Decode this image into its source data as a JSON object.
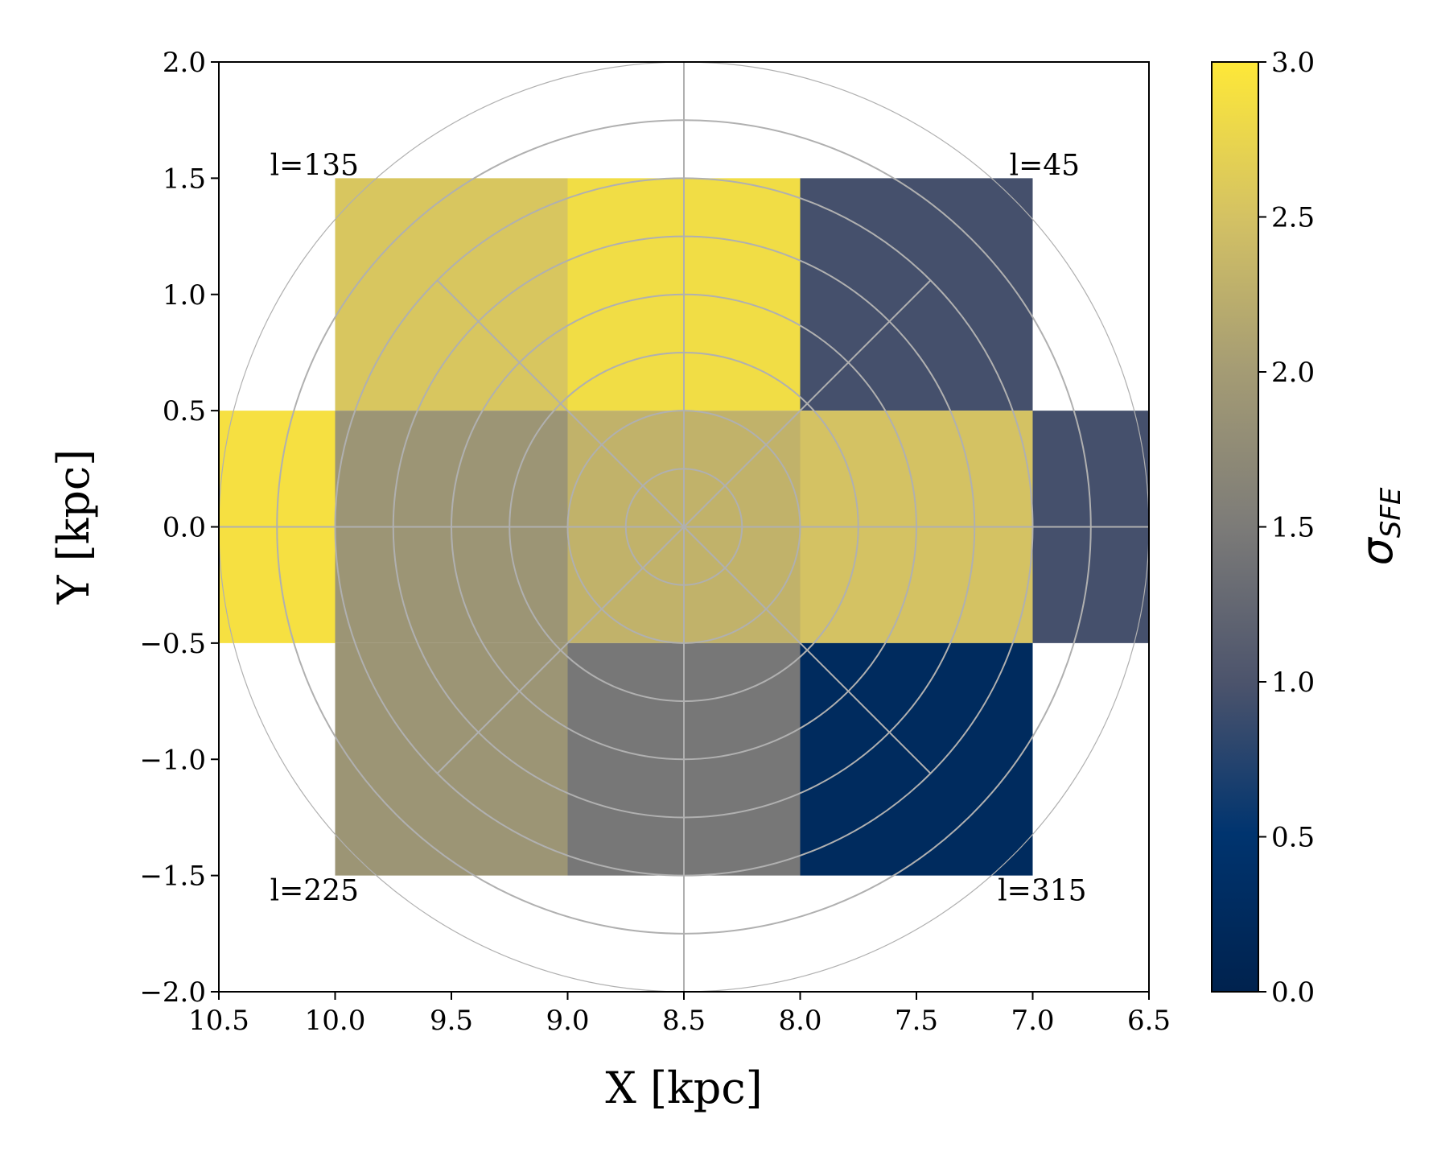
{
  "chart_data": {
    "type": "heatmap",
    "xlabel": "X [kpc]",
    "ylabel": "Y [kpc]",
    "xlim": [
      10.5,
      6.5
    ],
    "ylim": [
      -2.0,
      2.0
    ],
    "x_ticks": [
      "10.5",
      "10.0",
      "9.5",
      "9.0",
      "8.5",
      "8.0",
      "7.5",
      "7.0",
      "6.5"
    ],
    "y_ticks": [
      "2.0",
      "1.5",
      "1.0",
      "0.5",
      "0.0",
      "−0.5",
      "−1.0",
      "−1.5",
      "−2.0"
    ],
    "colorbar": {
      "label_base": "σ",
      "label_sub": "SFE",
      "range": [
        0.0,
        3.0
      ],
      "ticks": [
        "0.0",
        "0.5",
        "1.0",
        "1.5",
        "2.0",
        "2.5",
        "3.0"
      ],
      "colormap": "cividis"
    },
    "cells": [
      {
        "x0": 10.0,
        "x1": 9.0,
        "y0": 0.5,
        "y1": 1.5,
        "value": 2.55
      },
      {
        "x0": 9.0,
        "x1": 8.0,
        "y0": 0.5,
        "y1": 1.5,
        "value": 2.85
      },
      {
        "x0": 8.0,
        "x1": 7.0,
        "y0": 0.5,
        "y1": 1.5,
        "value": 0.95
      },
      {
        "x0": 10.5,
        "x1": 10.0,
        "y0": -0.5,
        "y1": 0.5,
        "value": 2.9
      },
      {
        "x0": 10.0,
        "x1": 9.0,
        "y0": -0.5,
        "y1": 0.5,
        "value": 1.9
      },
      {
        "x0": 9.0,
        "x1": 8.0,
        "y0": -0.5,
        "y1": 0.5,
        "value": 2.3
      },
      {
        "x0": 8.0,
        "x1": 7.0,
        "y0": -0.5,
        "y1": 0.5,
        "value": 2.5
      },
      {
        "x0": 7.0,
        "x1": 6.5,
        "y0": -0.5,
        "y1": 0.5,
        "value": 0.95
      },
      {
        "x0": 10.0,
        "x1": 9.0,
        "y0": -1.5,
        "y1": -0.5,
        "value": 1.9
      },
      {
        "x0": 9.0,
        "x1": 8.0,
        "y0": -1.5,
        "y1": -0.5,
        "value": 1.45
      },
      {
        "x0": 8.0,
        "x1": 7.0,
        "y0": -1.5,
        "y1": -0.5,
        "value": 0.25
      }
    ],
    "overlay": {
      "center": [
        8.5,
        0.0
      ],
      "circle_radii_kpc": [
        0.25,
        0.5,
        0.75,
        1.0,
        1.25,
        1.5,
        1.75,
        2.0
      ],
      "spoke_angles_deg": [
        0,
        45,
        90,
        135,
        180,
        225,
        270,
        315
      ],
      "diagonal_length_kpc": 1.5
    },
    "annotations": [
      {
        "text": "l=135",
        "x": 10.28,
        "y": 1.5
      },
      {
        "text": "l=45",
        "x": 7.1,
        "y": 1.5
      },
      {
        "text": "l=225",
        "x": 10.28,
        "y": -1.62
      },
      {
        "text": "l=315",
        "x": 7.15,
        "y": -1.62
      }
    ]
  }
}
